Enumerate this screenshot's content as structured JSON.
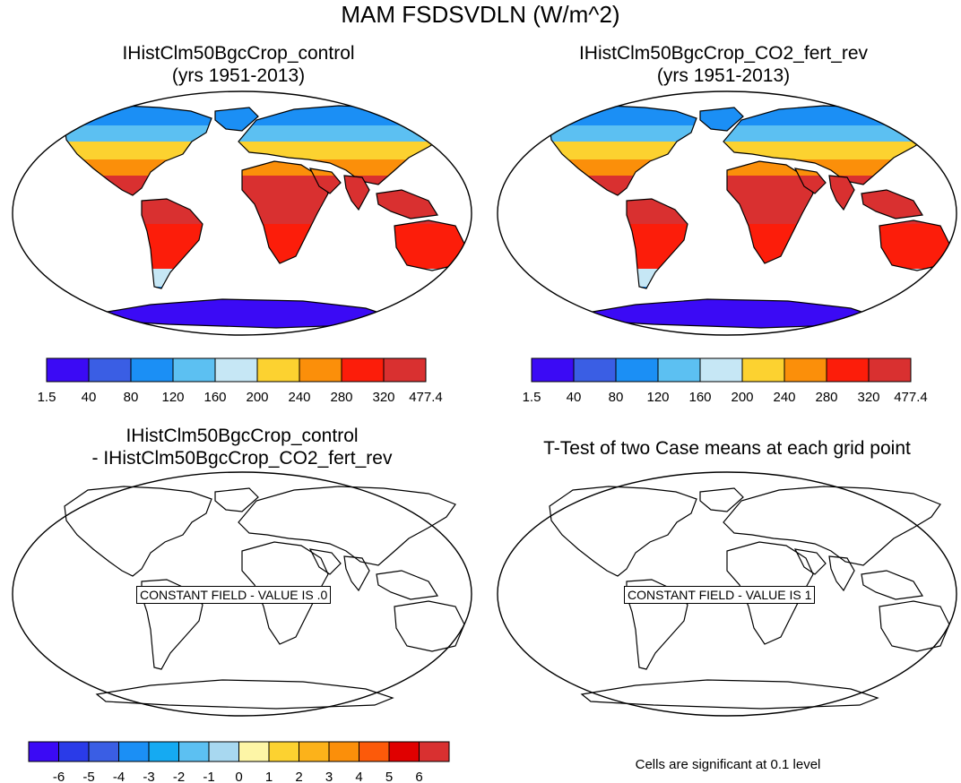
{
  "main_title": "MAM FSDSVDLN (W/m^2)",
  "panels": [
    {
      "title": "IHistClm50BgcCrop_control",
      "subtitle": "(yrs 1951-2013)"
    },
    {
      "title": "IHistClm50BgcCrop_CO2_fert_rev",
      "subtitle": "(yrs 1951-2013)"
    },
    {
      "title": "IHistClm50BgcCrop_control",
      "subtitle": "- IHistClm50BgcCrop_CO2_fert_rev",
      "constant_label": "CONSTANT FIELD - VALUE IS .0"
    },
    {
      "title": "T-Test of two Case means at each grid point",
      "subtitle": "",
      "constant_label": "CONSTANT FIELD - VALUE IS 1"
    }
  ],
  "note": "Cells are significant at 0.1 level",
  "chart_data": [
    {
      "type": "heatmap",
      "title": "IHistClm50BgcCrop_control",
      "subtitle": "(yrs 1951-2013)",
      "colorbar": {
        "labels": [
          "1.5",
          "40",
          "80",
          "120",
          "160",
          "200",
          "240",
          "280",
          "320",
          "477.4"
        ],
        "colors": [
          "#3b0af5",
          "#3a5ee4",
          "#1b8ff5",
          "#5cc0f2",
          "#c6e7f5",
          "#fcd230",
          "#fb8f0a",
          "#fc1d0a",
          "#d93030"
        ]
      },
      "levels": [
        1.5,
        40,
        80,
        120,
        160,
        200,
        240,
        280,
        320,
        477.4
      ]
    },
    {
      "type": "heatmap",
      "title": "IHistClm50BgcCrop_CO2_fert_rev",
      "subtitle": "(yrs 1951-2013)",
      "colorbar": {
        "labels": [
          "1.5",
          "40",
          "80",
          "120",
          "160",
          "200",
          "240",
          "280",
          "320",
          "477.4"
        ],
        "colors": [
          "#3b0af5",
          "#3a5ee4",
          "#1b8ff5",
          "#5cc0f2",
          "#c6e7f5",
          "#fcd230",
          "#fb8f0a",
          "#fc1d0a",
          "#d93030"
        ]
      },
      "levels": [
        1.5,
        40,
        80,
        120,
        160,
        200,
        240,
        280,
        320,
        477.4
      ]
    },
    {
      "type": "heatmap",
      "title": "IHistClm50BgcCrop_control",
      "subtitle": "- IHistClm50BgcCrop_CO2_fert_rev",
      "constant_value": 0,
      "colorbar": {
        "labels": [
          "-6",
          "-5",
          "-4",
          "-3",
          "-2",
          "-1",
          "0",
          "1",
          "2",
          "3",
          "4",
          "5",
          "6"
        ],
        "colors": [
          "#3b0af5",
          "#2a3be8",
          "#3a5ee4",
          "#1b8ff5",
          "#15aaf2",
          "#5cc0f2",
          "#a8d8f0",
          "#fdf5a6",
          "#fcd230",
          "#fcb21a",
          "#fb8f0a",
          "#fc5a0a",
          "#e00000",
          "#d93030"
        ]
      }
    },
    {
      "type": "heatmap",
      "title": "T-Test of two Case means at each grid point",
      "constant_value": 1
    }
  ]
}
